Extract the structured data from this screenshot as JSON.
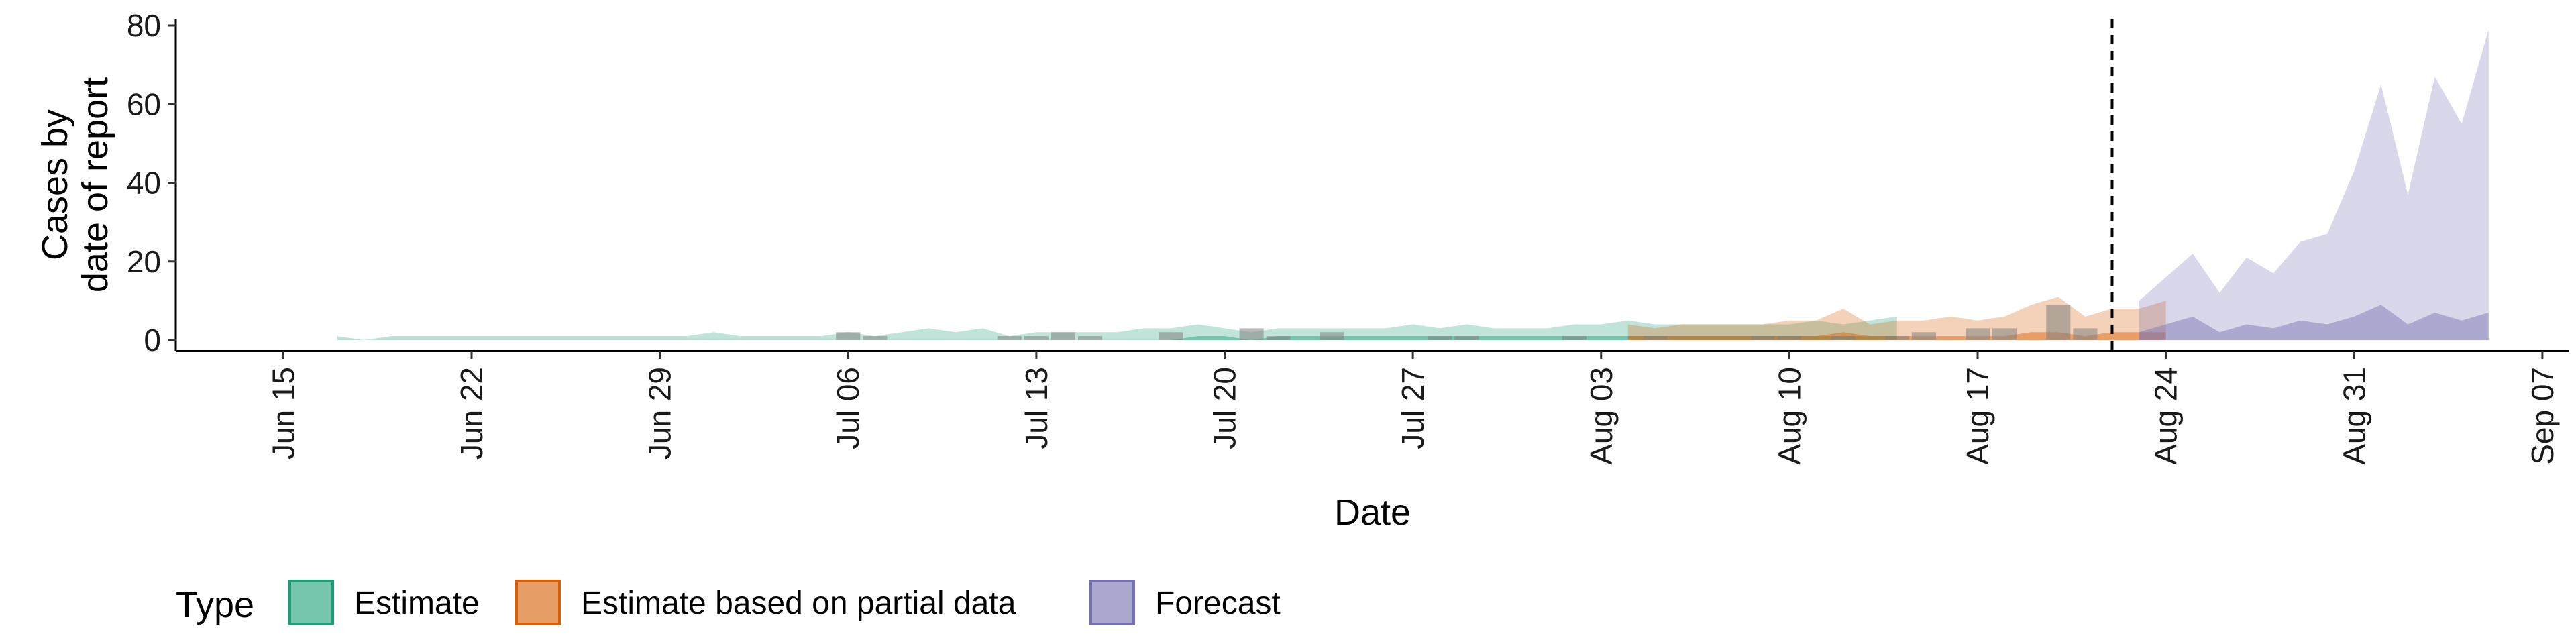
{
  "chart_data": {
    "type": "area",
    "xlabel": "Date",
    "ylabel_lines": [
      "Cases by",
      "date of report"
    ],
    "ylim": [
      0,
      80
    ],
    "yticks": [
      0,
      20,
      40,
      60,
      80
    ],
    "xlim": [
      "2020-06-11",
      "2020-09-08"
    ],
    "xticks": [
      {
        "date": "2020-06-15",
        "label": "Jun 15"
      },
      {
        "date": "2020-06-22",
        "label": "Jun 22"
      },
      {
        "date": "2020-06-29",
        "label": "Jun 29"
      },
      {
        "date": "2020-07-06",
        "label": "Jul 06"
      },
      {
        "date": "2020-07-13",
        "label": "Jul 13"
      },
      {
        "date": "2020-07-20",
        "label": "Jul 20"
      },
      {
        "date": "2020-07-27",
        "label": "Jul 27"
      },
      {
        "date": "2020-08-03",
        "label": "Aug 03"
      },
      {
        "date": "2020-08-10",
        "label": "Aug 10"
      },
      {
        "date": "2020-08-17",
        "label": "Aug 17"
      },
      {
        "date": "2020-08-24",
        "label": "Aug 24"
      },
      {
        "date": "2020-08-31",
        "label": "Aug 31"
      },
      {
        "date": "2020-09-07",
        "label": "Sep 07"
      }
    ],
    "forecast_date": "2020-08-22",
    "legend": {
      "title": "Type",
      "position": "bottom",
      "items": [
        {
          "label": "Estimate",
          "color": "#1b9e77"
        },
        {
          "label": "Estimate based on partial data",
          "color": "#d95f02"
        },
        {
          "label": "Forecast",
          "color": "#7570b3"
        }
      ]
    },
    "series": [
      {
        "name": "Estimate",
        "color": "#1b9e77",
        "start": "2020-06-17",
        "upper": [
          1,
          0,
          1,
          1,
          1,
          1,
          1,
          1,
          1,
          1,
          1,
          1,
          1,
          1,
          2,
          1,
          1,
          1,
          1,
          2,
          1,
          2,
          3,
          2,
          3,
          1,
          2,
          2,
          2,
          2,
          3,
          3,
          4,
          3,
          2,
          3,
          3,
          3,
          3,
          3,
          4,
          3,
          4,
          3,
          3,
          3,
          4,
          4,
          5,
          4,
          4,
          4,
          4,
          4,
          4,
          5,
          4,
          5,
          6
        ],
        "lower": [
          0,
          0,
          0,
          0,
          0,
          0,
          0,
          0,
          0,
          0,
          0,
          0,
          0,
          0,
          0,
          0,
          0,
          0,
          0,
          0,
          0,
          0,
          0,
          0,
          0,
          0,
          0,
          0,
          0,
          0,
          0,
          0,
          0,
          0,
          0,
          0,
          0,
          0,
          0,
          0,
          0,
          0,
          0,
          0,
          0,
          0,
          0,
          0,
          0,
          0,
          0,
          0,
          0,
          0,
          0,
          0,
          0,
          0,
          0
        ],
        "median": [
          0,
          0,
          0,
          0,
          0,
          0,
          0,
          0,
          0,
          0,
          0,
          0,
          0,
          0,
          0,
          0,
          0,
          0,
          0,
          0,
          0,
          0,
          0,
          0,
          0,
          0,
          0,
          0,
          0,
          0,
          0,
          0,
          1,
          1,
          0,
          1,
          1,
          1,
          1,
          1,
          1,
          1,
          1,
          1,
          1,
          1,
          1,
          1,
          1,
          1,
          1,
          1,
          1,
          1,
          1,
          1,
          1,
          1,
          1
        ]
      },
      {
        "name": "Estimate based on partial data",
        "color": "#d95f02",
        "start": "2020-08-04",
        "upper": [
          4,
          3,
          4,
          4,
          4,
          4,
          5,
          5,
          8,
          4,
          5,
          5,
          6,
          5,
          6,
          9,
          11,
          6,
          8,
          8,
          10
        ],
        "lower": [
          0,
          0,
          0,
          0,
          0,
          0,
          0,
          0,
          0,
          0,
          0,
          0,
          0,
          0,
          0,
          0,
          0,
          0,
          0,
          0,
          0
        ],
        "median": [
          1,
          1,
          1,
          1,
          1,
          1,
          1,
          1,
          2,
          1,
          1,
          1,
          1,
          1,
          1,
          2,
          2,
          1,
          2,
          2,
          2
        ]
      },
      {
        "name": "Forecast",
        "color": "#7570b3",
        "start": "2020-08-23",
        "upper": [
          10,
          16,
          22,
          12,
          21,
          17,
          25,
          27,
          43,
          65,
          37,
          67,
          55,
          79
        ],
        "lower": [
          0,
          0,
          0,
          0,
          0,
          0,
          0,
          0,
          0,
          0,
          0,
          0,
          0,
          0
        ],
        "median": [
          2,
          4,
          6,
          2,
          4,
          3,
          5,
          4,
          6,
          9,
          4,
          7,
          5,
          7
        ]
      }
    ],
    "observed": {
      "color": "#808080",
      "points": [
        {
          "date": "2020-07-06",
          "value": 2
        },
        {
          "date": "2020-07-07",
          "value": 1
        },
        {
          "date": "2020-07-12",
          "value": 1
        },
        {
          "date": "2020-07-13",
          "value": 1
        },
        {
          "date": "2020-07-14",
          "value": 2
        },
        {
          "date": "2020-07-15",
          "value": 1
        },
        {
          "date": "2020-07-18",
          "value": 2
        },
        {
          "date": "2020-07-21",
          "value": 3
        },
        {
          "date": "2020-07-22",
          "value": 1
        },
        {
          "date": "2020-07-24",
          "value": 2
        },
        {
          "date": "2020-07-28",
          "value": 1
        },
        {
          "date": "2020-07-29",
          "value": 1
        },
        {
          "date": "2020-08-02",
          "value": 1
        },
        {
          "date": "2020-08-05",
          "value": 1
        },
        {
          "date": "2020-08-09",
          "value": 1
        },
        {
          "date": "2020-08-10",
          "value": 1
        },
        {
          "date": "2020-08-12",
          "value": 1
        },
        {
          "date": "2020-08-14",
          "value": 1
        },
        {
          "date": "2020-08-15",
          "value": 2
        },
        {
          "date": "2020-08-17",
          "value": 3
        },
        {
          "date": "2020-08-18",
          "value": 3
        },
        {
          "date": "2020-08-20",
          "value": 9
        },
        {
          "date": "2020-08-21",
          "value": 3
        }
      ]
    }
  }
}
